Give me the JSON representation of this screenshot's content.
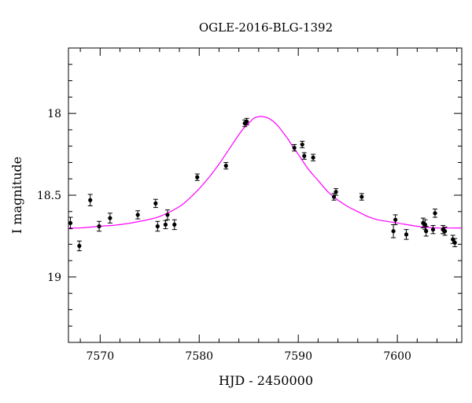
{
  "chart_data": {
    "type": "scatter",
    "title": "OGLE-2016-BLG-1392",
    "xlabel": "HJD - 2450000",
    "ylabel": "I magnitude",
    "xlim": [
      7566.8,
      7606.5
    ],
    "ylim": [
      19.4,
      17.6
    ],
    "y_inverted": true,
    "x_ticks": [
      7570,
      7580,
      7590,
      7600
    ],
    "y_ticks": [
      18,
      18.5,
      19
    ],
    "y_tick_labels": [
      "18",
      "18.5",
      "19"
    ],
    "colors": {
      "model": "#ff00ff",
      "points": "#000000",
      "axes": "#000000"
    },
    "series": [
      {
        "kind": "points_with_errorbars",
        "points": [
          {
            "x": 7567.0,
            "y": 18.67,
            "err": 0.035
          },
          {
            "x": 7567.9,
            "y": 18.81,
            "err": 0.03
          },
          {
            "x": 7569.0,
            "y": 18.53,
            "err": 0.035
          },
          {
            "x": 7569.9,
            "y": 18.69,
            "err": 0.03
          },
          {
            "x": 7571.0,
            "y": 18.64,
            "err": 0.03
          },
          {
            "x": 7573.8,
            "y": 18.62,
            "err": 0.025
          },
          {
            "x": 7575.6,
            "y": 18.55,
            "err": 0.025
          },
          {
            "x": 7575.8,
            "y": 18.69,
            "err": 0.03
          },
          {
            "x": 7576.6,
            "y": 18.68,
            "err": 0.025
          },
          {
            "x": 7576.8,
            "y": 18.62,
            "err": 0.03
          },
          {
            "x": 7577.5,
            "y": 18.68,
            "err": 0.03
          },
          {
            "x": 7579.8,
            "y": 18.39,
            "err": 0.02
          },
          {
            "x": 7582.7,
            "y": 18.32,
            "err": 0.02
          },
          {
            "x": 7584.6,
            "y": 18.06,
            "err": 0.02
          },
          {
            "x": 7584.8,
            "y": 18.05,
            "err": 0.02
          },
          {
            "x": 7589.6,
            "y": 18.21,
            "err": 0.02
          },
          {
            "x": 7590.4,
            "y": 18.19,
            "err": 0.02
          },
          {
            "x": 7590.6,
            "y": 18.26,
            "err": 0.02
          },
          {
            "x": 7591.5,
            "y": 18.27,
            "err": 0.02
          },
          {
            "x": 7593.6,
            "y": 18.51,
            "err": 0.02
          },
          {
            "x": 7593.8,
            "y": 18.48,
            "err": 0.02
          },
          {
            "x": 7596.4,
            "y": 18.51,
            "err": 0.02
          },
          {
            "x": 7599.6,
            "y": 18.72,
            "err": 0.04
          },
          {
            "x": 7599.8,
            "y": 18.65,
            "err": 0.03
          },
          {
            "x": 7600.9,
            "y": 18.74,
            "err": 0.03
          },
          {
            "x": 7602.6,
            "y": 18.67,
            "err": 0.03
          },
          {
            "x": 7602.8,
            "y": 18.68,
            "err": 0.03
          },
          {
            "x": 7602.9,
            "y": 18.72,
            "err": 0.03
          },
          {
            "x": 7603.6,
            "y": 18.71,
            "err": 0.025
          },
          {
            "x": 7603.8,
            "y": 18.61,
            "err": 0.025
          },
          {
            "x": 7604.6,
            "y": 18.71,
            "err": 0.025
          },
          {
            "x": 7604.8,
            "y": 18.72,
            "err": 0.025
          },
          {
            "x": 7605.6,
            "y": 18.77,
            "err": 0.025
          },
          {
            "x": 7605.8,
            "y": 18.79,
            "err": 0.025
          }
        ]
      },
      {
        "kind": "model_curve",
        "x": [
          7566.8,
          7568,
          7570,
          7572,
          7574,
          7576,
          7578,
          7579,
          7580,
          7581,
          7582,
          7583,
          7584,
          7584.5,
          7585,
          7585.5,
          7586,
          7586.5,
          7587,
          7587.5,
          7588,
          7588.5,
          7589,
          7589.5,
          7590,
          7591,
          7592,
          7593,
          7594,
          7595,
          7596,
          7597,
          7598,
          7600,
          7602,
          7604,
          7606.5
        ],
        "y": [
          18.7,
          18.7,
          18.69,
          18.68,
          18.66,
          18.63,
          18.57,
          18.52,
          18.46,
          18.39,
          18.31,
          18.22,
          18.13,
          18.09,
          18.06,
          18.03,
          18.02,
          18.02,
          18.03,
          18.05,
          18.08,
          18.12,
          18.16,
          18.21,
          18.25,
          18.34,
          18.41,
          18.48,
          18.53,
          18.57,
          18.6,
          18.63,
          18.65,
          18.67,
          18.69,
          18.7,
          18.7
        ]
      }
    ]
  }
}
